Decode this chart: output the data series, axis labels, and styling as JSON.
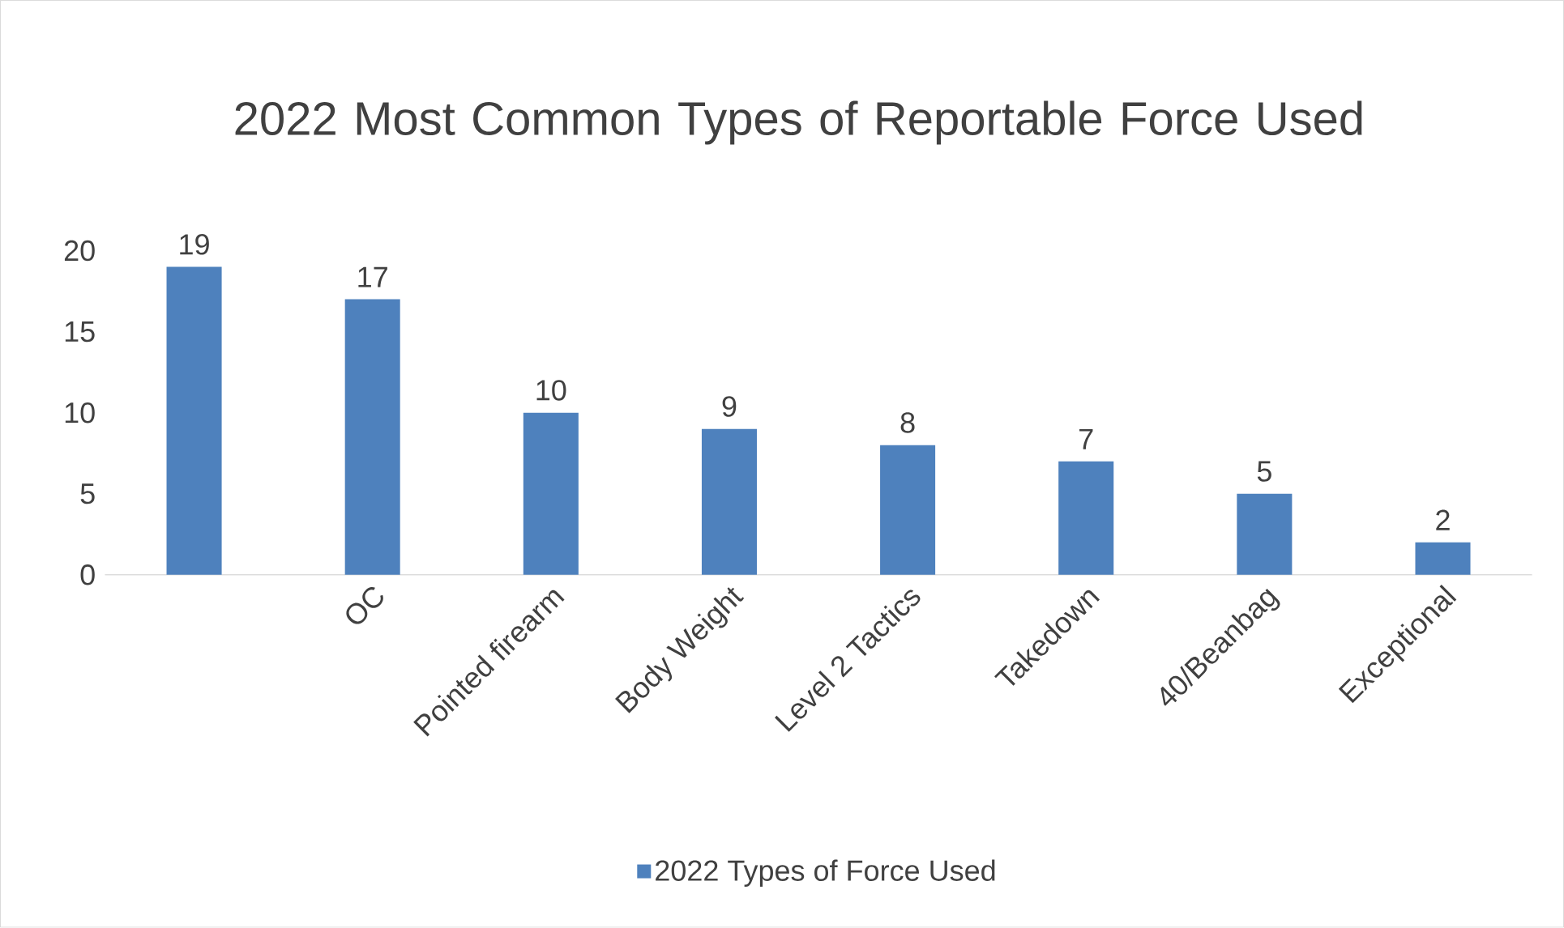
{
  "chart_data": {
    "type": "bar",
    "title": "2022 Most Common Types of Reportable Force Used",
    "categories": [
      null,
      "OC",
      "Pointed firearm",
      "Body Weight",
      "Level 2 Tactics",
      "Takedown",
      "40/Beanbag",
      "Exceptional"
    ],
    "series": [
      {
        "name": "2022 Types of Force Used",
        "color": "#4e81bd",
        "values": [
          19,
          17,
          10,
          9,
          8,
          7,
          5,
          2
        ]
      }
    ],
    "ylim": [
      0,
      20
    ],
    "yticks": [
      0,
      5,
      10,
      15,
      20
    ],
    "data_labels": true,
    "legend": "bottom",
    "grid": false
  }
}
